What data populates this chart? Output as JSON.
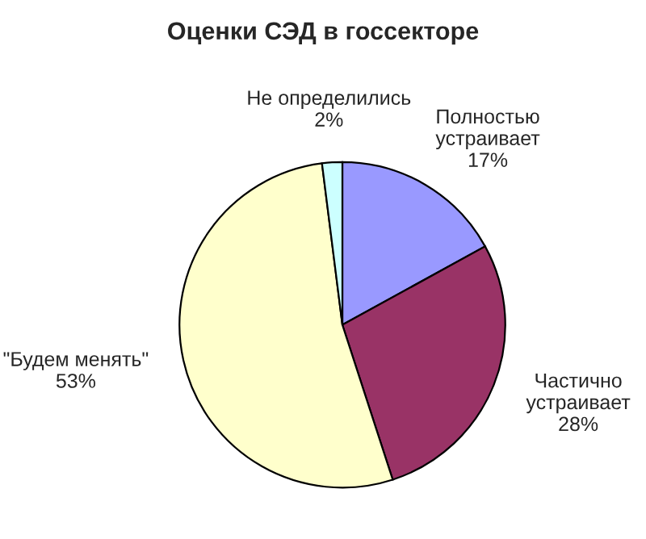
{
  "chart_data": {
    "type": "pie",
    "title": "Оценки СЭД в госсекторе",
    "categories": [
      "Полностью\nустраивает",
      "Частично\nустраивает",
      "\"Будем менять\"",
      "Не определились"
    ],
    "values": [
      17,
      28,
      53,
      2
    ],
    "value_labels": [
      "17%",
      "28%",
      "53%",
      "2%"
    ],
    "colors": [
      "#9999ff",
      "#993366",
      "#ffffcc",
      "#ccffff"
    ]
  }
}
